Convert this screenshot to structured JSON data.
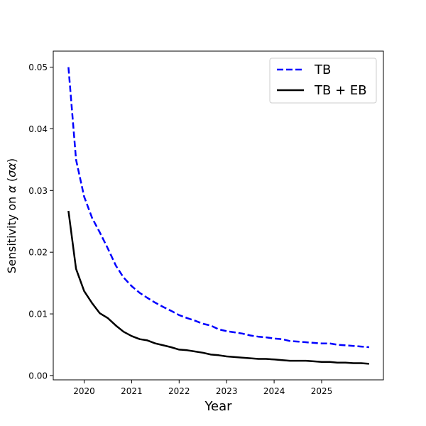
{
  "chart_data": {
    "type": "line",
    "title": "",
    "xlabel": "Year",
    "ylabel_prefix": "Sensitivity on ",
    "ylabel_alpha": "α",
    "ylabel_paren_open": " (",
    "ylabel_sigma_alpha": "σα",
    "ylabel_paren_close": ")",
    "xlim": [
      2019.35,
      2026.3
    ],
    "ylim": [
      -0.0007,
      0.0526
    ],
    "xticks": [
      2020,
      2021,
      2022,
      2023,
      2024,
      2025
    ],
    "xtick_labels": [
      "2020",
      "2021",
      "2022",
      "2023",
      "2024",
      "2025"
    ],
    "yticks": [
      0.0,
      0.01,
      0.02,
      0.03,
      0.04,
      0.05
    ],
    "ytick_labels": [
      "0.00",
      "0.01",
      "0.02",
      "0.03",
      "0.04",
      "0.05"
    ],
    "grid": false,
    "legend_position": "top-right",
    "series": [
      {
        "name": "TB",
        "color": "#0000ff",
        "style": "dashed",
        "x": [
          2019.67,
          2019.83,
          2020.0,
          2020.17,
          2020.33,
          2020.5,
          2020.67,
          2020.83,
          2021.0,
          2021.17,
          2021.33,
          2021.5,
          2021.67,
          2021.83,
          2022.0,
          2022.17,
          2022.33,
          2022.5,
          2022.67,
          2022.83,
          2023.0,
          2023.17,
          2023.33,
          2023.5,
          2023.67,
          2023.83,
          2024.0,
          2024.17,
          2024.33,
          2024.5,
          2024.67,
          2024.83,
          2025.0,
          2025.17,
          2025.33,
          2025.5,
          2025.67,
          2025.83,
          2026.0
        ],
        "values": [
          0.05,
          0.035,
          0.029,
          0.0255,
          0.0232,
          0.0206,
          0.0178,
          0.0159,
          0.0145,
          0.0134,
          0.0126,
          0.0118,
          0.0111,
          0.0105,
          0.0098,
          0.0093,
          0.0089,
          0.0084,
          0.0081,
          0.0075,
          0.0072,
          0.007,
          0.0068,
          0.0065,
          0.0063,
          0.0062,
          0.006,
          0.0059,
          0.0056,
          0.0055,
          0.0054,
          0.0053,
          0.0052,
          0.0052,
          0.005,
          0.0049,
          0.0048,
          0.0047,
          0.0046
        ]
      },
      {
        "name": "TB + EB",
        "color": "#000000",
        "style": "solid",
        "x": [
          2019.67,
          2019.83,
          2020.0,
          2020.17,
          2020.33,
          2020.5,
          2020.67,
          2020.83,
          2021.0,
          2021.17,
          2021.33,
          2021.5,
          2021.67,
          2021.83,
          2022.0,
          2022.17,
          2022.33,
          2022.5,
          2022.67,
          2022.83,
          2023.0,
          2023.17,
          2023.33,
          2023.5,
          2023.67,
          2023.83,
          2024.0,
          2024.17,
          2024.33,
          2024.5,
          2024.67,
          2024.83,
          2025.0,
          2025.17,
          2025.33,
          2025.5,
          2025.67,
          2025.83,
          2026.0
        ],
        "values": [
          0.0267,
          0.0173,
          0.0137,
          0.0117,
          0.0101,
          0.0093,
          0.0081,
          0.0071,
          0.0064,
          0.0059,
          0.0057,
          0.0052,
          0.0049,
          0.0046,
          0.0042,
          0.0041,
          0.0039,
          0.0037,
          0.0034,
          0.0033,
          0.0031,
          0.003,
          0.0029,
          0.0028,
          0.0027,
          0.0027,
          0.0026,
          0.0025,
          0.0024,
          0.0024,
          0.0024,
          0.0023,
          0.0022,
          0.0022,
          0.0021,
          0.0021,
          0.002,
          0.002,
          0.0019
        ]
      }
    ]
  }
}
